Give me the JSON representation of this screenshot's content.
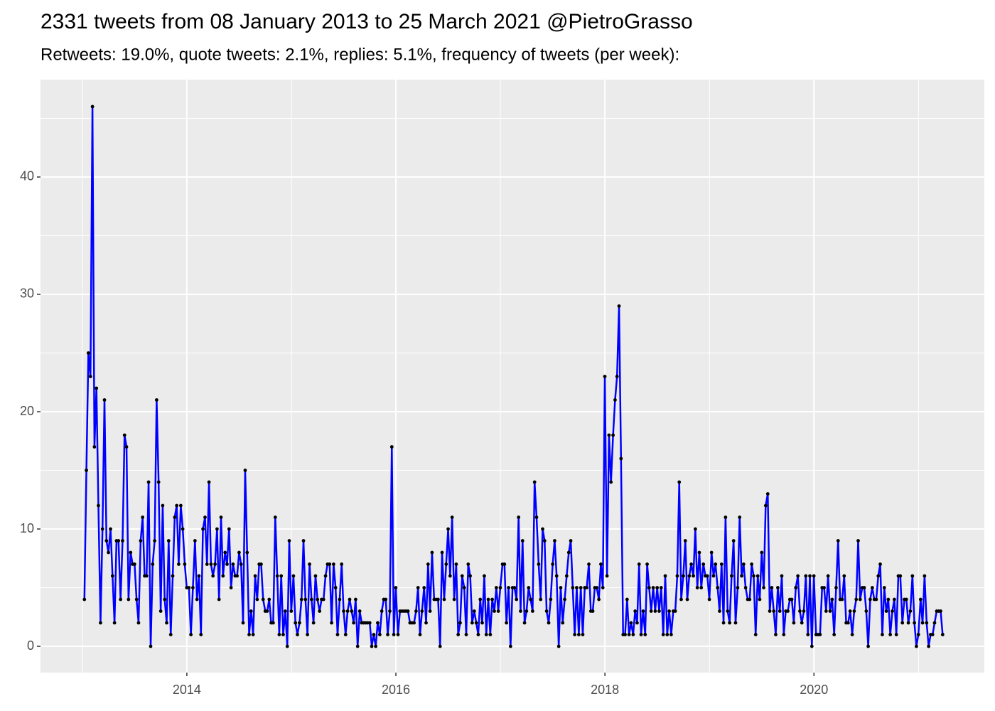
{
  "chart_data": {
    "type": "line",
    "title": "2331 tweets from 08 January 2013 to 25 March 2021 @PietroGrasso",
    "subtitle": "Retweets: 19.0%, quote tweets: 2.1%, replies: 5.1%, frequency of tweets (per week):",
    "color": "#0000ff",
    "point_color": "#000000",
    "xlim": [
      2012.6,
      2021.63
    ],
    "xticks": [
      2014,
      2016,
      2018,
      2020
    ],
    "ylim": [
      -2.24,
      48.3
    ],
    "yticks": [
      0,
      10,
      20,
      30,
      40
    ],
    "grid": true,
    "x": [
      2013.02,
      2013.039,
      2013.058,
      2013.078,
      2013.097,
      2013.116,
      2013.135,
      2013.154,
      2013.174,
      2013.193,
      2013.212,
      2013.231,
      2013.25,
      2013.27,
      2013.289,
      2013.308,
      2013.327,
      2013.346,
      2013.366,
      2013.385,
      2013.404,
      2013.423,
      2013.442,
      2013.462,
      2013.481,
      2013.5,
      2013.519,
      2013.538,
      2013.558,
      2013.577,
      2013.596,
      2013.615,
      2013.634,
      2013.654,
      2013.673,
      2013.692,
      2013.711,
      2013.73,
      2013.75,
      2013.769,
      2013.788,
      2013.807,
      2013.826,
      2013.846,
      2013.865,
      2013.884,
      2013.903,
      2013.922,
      2013.942,
      2013.961,
      2013.98,
      2013.999,
      2014.02,
      2014.039,
      2014.058,
      2014.078,
      2014.097,
      2014.116,
      2014.135,
      2014.154,
      2014.174,
      2014.193,
      2014.212,
      2014.231,
      2014.25,
      2014.27,
      2014.289,
      2014.308,
      2014.327,
      2014.346,
      2014.366,
      2014.385,
      2014.404,
      2014.423,
      2014.442,
      2014.462,
      2014.481,
      2014.5,
      2014.519,
      2014.538,
      2014.558,
      2014.577,
      2014.596,
      2014.615,
      2014.634,
      2014.654,
      2014.673,
      2014.692,
      2014.711,
      2014.73,
      2014.75,
      2014.769,
      2014.788,
      2014.807,
      2014.826,
      2014.846,
      2014.865,
      2014.884,
      2014.903,
      2014.922,
      2014.942,
      2014.961,
      2014.98,
      2014.999,
      2015.02,
      2015.039,
      2015.058,
      2015.078,
      2015.097,
      2015.116,
      2015.135,
      2015.154,
      2015.174,
      2015.193,
      2015.212,
      2015.231,
      2015.25,
      2015.27,
      2015.289,
      2015.308,
      2015.327,
      2015.346,
      2015.366,
      2015.385,
      2015.404,
      2015.423,
      2015.442,
      2015.462,
      2015.481,
      2015.5,
      2015.519,
      2015.538,
      2015.558,
      2015.577,
      2015.596,
      2015.615,
      2015.634,
      2015.654,
      2015.673,
      2015.692,
      2015.711,
      2015.73,
      2015.75,
      2015.769,
      2015.788,
      2015.807,
      2015.826,
      2015.846,
      2015.865,
      2015.884,
      2015.903,
      2015.922,
      2015.942,
      2015.961,
      2015.98,
      2015.999,
      2016.02,
      2016.039,
      2016.058,
      2016.078,
      2016.097,
      2016.116,
      2016.135,
      2016.154,
      2016.174,
      2016.193,
      2016.212,
      2016.231,
      2016.25,
      2016.27,
      2016.289,
      2016.308,
      2016.327,
      2016.346,
      2016.366,
      2016.385,
      2016.404,
      2016.423,
      2016.442,
      2016.462,
      2016.481,
      2016.5,
      2016.519,
      2016.538,
      2016.558,
      2016.577,
      2016.596,
      2016.615,
      2016.634,
      2016.654,
      2016.673,
      2016.692,
      2016.711,
      2016.73,
      2016.75,
      2016.769,
      2016.788,
      2016.807,
      2016.826,
      2016.846,
      2016.865,
      2016.884,
      2016.903,
      2016.922,
      2016.942,
      2016.961,
      2016.98,
      2016.999,
      2017.02,
      2017.039,
      2017.058,
      2017.078,
      2017.097,
      2017.116,
      2017.135,
      2017.154,
      2017.174,
      2017.193,
      2017.212,
      2017.231,
      2017.25,
      2017.27,
      2017.289,
      2017.308,
      2017.327,
      2017.346,
      2017.366,
      2017.385,
      2017.404,
      2017.423,
      2017.442,
      2017.462,
      2017.481,
      2017.5,
      2017.519,
      2017.538,
      2017.558,
      2017.577,
      2017.596,
      2017.615,
      2017.634,
      2017.654,
      2017.673,
      2017.692,
      2017.711,
      2017.73,
      2017.75,
      2017.769,
      2017.788,
      2017.807,
      2017.826,
      2017.846,
      2017.865,
      2017.884,
      2017.903,
      2017.922,
      2017.942,
      2017.961,
      2017.98,
      2017.999,
      2018.02,
      2018.039,
      2018.058,
      2018.078,
      2018.097,
      2018.116,
      2018.135,
      2018.154,
      2018.174,
      2018.193,
      2018.212,
      2018.231,
      2018.25,
      2018.27,
      2018.289,
      2018.308,
      2018.327,
      2018.346,
      2018.366,
      2018.385,
      2018.404,
      2018.423,
      2018.442,
      2018.462,
      2018.481,
      2018.5,
      2018.519,
      2018.538,
      2018.558,
      2018.577,
      2018.596,
      2018.615,
      2018.634,
      2018.654,
      2018.673,
      2018.692,
      2018.711,
      2018.73,
      2018.75,
      2018.769,
      2018.788,
      2018.807,
      2018.826,
      2018.846,
      2018.865,
      2018.884,
      2018.903,
      2018.922,
      2018.942,
      2018.961,
      2018.98,
      2018.999,
      2019.02,
      2019.039,
      2019.058,
      2019.078,
      2019.097,
      2019.116,
      2019.135,
      2019.154,
      2019.174,
      2019.193,
      2019.212,
      2019.231,
      2019.25,
      2019.27,
      2019.289,
      2019.308,
      2019.327,
      2019.346,
      2019.366,
      2019.385,
      2019.404,
      2019.423,
      2019.442,
      2019.462,
      2019.481,
      2019.5,
      2019.519,
      2019.538,
      2019.558,
      2019.577,
      2019.596,
      2019.615,
      2019.634,
      2019.654,
      2019.673,
      2019.692,
      2019.711,
      2019.73,
      2019.75,
      2019.769,
      2019.788,
      2019.807,
      2019.826,
      2019.846,
      2019.865,
      2019.884,
      2019.903,
      2019.922,
      2019.942,
      2019.961,
      2019.98,
      2019.999,
      2020.02,
      2020.039,
      2020.058,
      2020.078,
      2020.097,
      2020.116,
      2020.135,
      2020.154,
      2020.174,
      2020.193,
      2020.212,
      2020.231,
      2020.25,
      2020.27,
      2020.289,
      2020.308,
      2020.327,
      2020.346,
      2020.366,
      2020.385,
      2020.404,
      2020.423,
      2020.442,
      2020.462,
      2020.481,
      2020.5,
      2020.519,
      2020.538,
      2020.558,
      2020.577,
      2020.596,
      2020.615,
      2020.634,
      2020.654,
      2020.673,
      2020.692,
      2020.711,
      2020.73,
      2020.75,
      2020.769,
      2020.788,
      2020.807,
      2020.826,
      2020.846,
      2020.865,
      2020.884,
      2020.903,
      2020.922,
      2020.942,
      2020.961,
      2020.98,
      2020.999,
      2021.02,
      2021.039,
      2021.058,
      2021.078,
      2021.097,
      2021.116,
      2021.135,
      2021.154,
      2021.174,
      2021.193,
      2021.212,
      2021.231
    ],
    "values": [
      4,
      15,
      25,
      23,
      46,
      17,
      22,
      12,
      2,
      10,
      21,
      9,
      8,
      10,
      6,
      2,
      9,
      9,
      4,
      9,
      18,
      17,
      4,
      8,
      7,
      7,
      4,
      2,
      9,
      11,
      6,
      6,
      14,
      0,
      7,
      9,
      21,
      14,
      3,
      12,
      4,
      2,
      9,
      1,
      6,
      11,
      12,
      7,
      12,
      10,
      7,
      5,
      5,
      1,
      5,
      9,
      4,
      6,
      1,
      10,
      11,
      7,
      14,
      7,
      6,
      7,
      10,
      4,
      11,
      6,
      8,
      7,
      10,
      5,
      7,
      6,
      6,
      8,
      7,
      2,
      15,
      8,
      1,
      3,
      1,
      6,
      4,
      7,
      7,
      4,
      3,
      3,
      4,
      2,
      2,
      11,
      6,
      1,
      6,
      1,
      3,
      0,
      9,
      3,
      6,
      2,
      1,
      2,
      4,
      9,
      4,
      1,
      7,
      4,
      2,
      6,
      4,
      3,
      4,
      4,
      6,
      7,
      7,
      2,
      7,
      5,
      1,
      4,
      7,
      3,
      1,
      3,
      4,
      3,
      2,
      4,
      0,
      3,
      2,
      2,
      2,
      2,
      2,
      0,
      1,
      0,
      2,
      1,
      3,
      4,
      4,
      1,
      3,
      17,
      1,
      5,
      1,
      3,
      3,
      3,
      3,
      3,
      2,
      2,
      2,
      3,
      5,
      1,
      3,
      5,
      2,
      7,
      3,
      8,
      4,
      4,
      4,
      0,
      8,
      4,
      7,
      10,
      6,
      11,
      4,
      7,
      1,
      2,
      6,
      5,
      1,
      7,
      6,
      2,
      3,
      2,
      1,
      4,
      2,
      6,
      1,
      4,
      1,
      4,
      3,
      5,
      3,
      5,
      7,
      7,
      2,
      5,
      0,
      5,
      5,
      4,
      11,
      3,
      9,
      2,
      3,
      5,
      4,
      3,
      14,
      11,
      7,
      4,
      10,
      9,
      3,
      2,
      4,
      7,
      9,
      6,
      0,
      5,
      2,
      4,
      6,
      8,
      9,
      5,
      1,
      5,
      1,
      5,
      1,
      5,
      5,
      7,
      3,
      3,
      5,
      5,
      4,
      7,
      5,
      23,
      6,
      18,
      14,
      18,
      21,
      23,
      29,
      16,
      1,
      1,
      4,
      1,
      2,
      1,
      3,
      2,
      7,
      1,
      3,
      1,
      7,
      5,
      3,
      5,
      3,
      5,
      3,
      5,
      1,
      6,
      1,
      3,
      1,
      3,
      3,
      6,
      14,
      4,
      6,
      9,
      4,
      6,
      7,
      6,
      10,
      5,
      8,
      5,
      7,
      6,
      6,
      4,
      8,
      6,
      7,
      5,
      3,
      7,
      2,
      11,
      3,
      2,
      6,
      9,
      2,
      5,
      11,
      6,
      7,
      5,
      4,
      4,
      7,
      6,
      1,
      6,
      4,
      8,
      5,
      12,
      13,
      3,
      5,
      3,
      1,
      5,
      3,
      6,
      1,
      3,
      3,
      4,
      4,
      2,
      5,
      6,
      3,
      2,
      3,
      6,
      1,
      6,
      0,
      6,
      1,
      1,
      1,
      5,
      5,
      3,
      6,
      3,
      4,
      1,
      5,
      9,
      4,
      4,
      6,
      2,
      2,
      3,
      1,
      3,
      4,
      9,
      4,
      5,
      5,
      3,
      0,
      4,
      5,
      4,
      4,
      6,
      7,
      1,
      5,
      3,
      4,
      1,
      3,
      4,
      1,
      6,
      6,
      2,
      4,
      4,
      2,
      3,
      6,
      2,
      0,
      1,
      4,
      2,
      6,
      2,
      0,
      1,
      1,
      2,
      3,
      3,
      3,
      1
    ]
  }
}
